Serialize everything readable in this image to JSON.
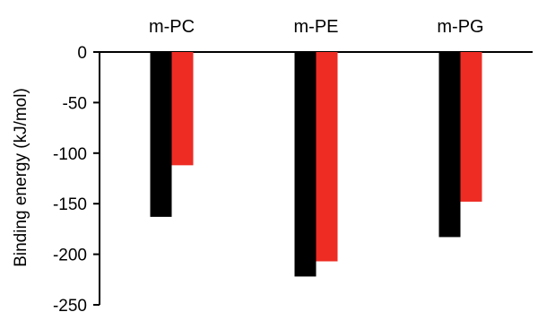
{
  "chart_data": {
    "type": "bar",
    "categories": [
      "m-PC",
      "m-PE",
      "m-PG"
    ],
    "series": [
      {
        "values": [
          -163,
          -222,
          -183
        ],
        "color": "#000000"
      },
      {
        "values": [
          -112,
          -207,
          -148
        ],
        "color": "#ee2c24"
      }
    ],
    "ylabel": "Binding energy (kJ/mol)",
    "yticks": [
      0,
      -50,
      -100,
      -150,
      -200,
      -250
    ],
    "ylim": [
      -250,
      0
    ],
    "category_label_position": "top",
    "grid": false,
    "legend": "none"
  }
}
